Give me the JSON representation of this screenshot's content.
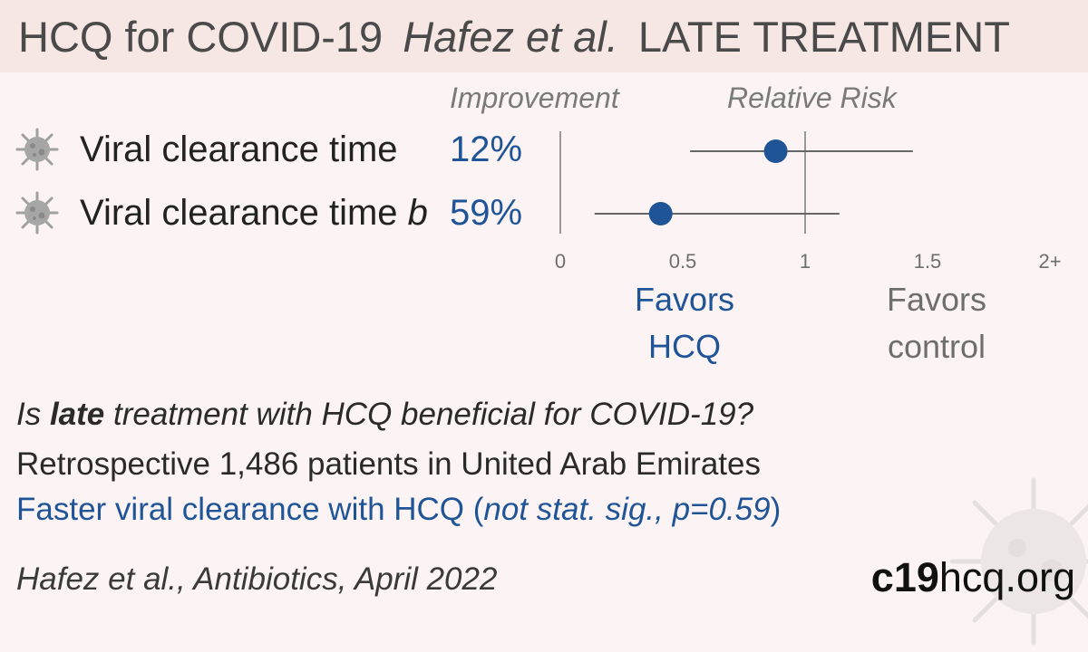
{
  "header": {
    "title_main": "HCQ for COVID-19",
    "title_study": "Hafez et al.",
    "title_stage": "LATE TREATMENT"
  },
  "columns": {
    "improvement": "Improvement",
    "relative_risk": "Relative Risk"
  },
  "outcomes": [
    {
      "label": "Viral clearance time",
      "suffix": "",
      "improvement": "12%"
    },
    {
      "label": "Viral clearance time ",
      "suffix": "b",
      "improvement": "59%"
    }
  ],
  "favors": {
    "hcq_1": "Favors",
    "hcq_2": "HCQ",
    "control_1": "Favors",
    "control_2": "control"
  },
  "chart_data": {
    "type": "scatter",
    "subtype": "forest-plot",
    "x_axis": {
      "label": "Relative Risk",
      "ticks": [
        "0",
        "0.5",
        "1",
        "1.5",
        "2+"
      ],
      "tick_values": [
        0,
        0.5,
        1,
        1.5,
        2
      ],
      "range": [
        0,
        2
      ]
    },
    "reference_line": 1,
    "series": [
      {
        "name": "Viral clearance time",
        "estimate": 0.88,
        "ci_low": 0.53,
        "ci_high": 1.44
      },
      {
        "name": "Viral clearance time b",
        "estimate": 0.41,
        "ci_low": 0.14,
        "ci_high": 1.14
      }
    ],
    "colors": {
      "point": "#1f5496",
      "ci": "#666666",
      "reference": "#999999"
    }
  },
  "summary": {
    "q_pre": "Is ",
    "q_bold": "late",
    "q_post": " treatment with HCQ beneficial for COVID-19?",
    "design": "Retrospective 1,486 patients in United Arab Emirates",
    "result_main": "Faster viral clearance with HCQ (",
    "result_italic": "not stat. sig., p=0.59",
    "result_end": ")",
    "citation": "Hafez et al., Antibiotics, April 2022"
  },
  "site": {
    "bold": "c19",
    "rest": "hcq.org"
  },
  "icons": {
    "row_icon": "virus-icon",
    "corner_icon": "virus-icon"
  }
}
